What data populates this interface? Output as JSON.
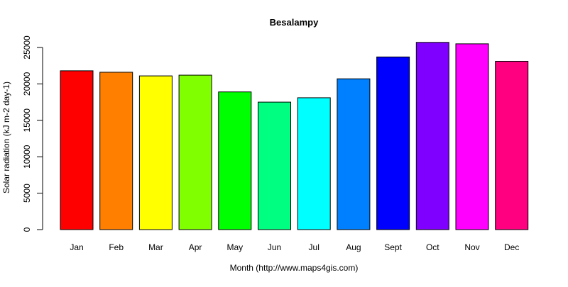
{
  "chart_data": {
    "type": "bar",
    "title": "Besalampy",
    "xlabel": "Month (http://www.maps4gis.com)",
    "ylabel": "Solar radiation (kJ m-2 day-1)",
    "ylim": [
      0,
      25000
    ],
    "yticks": [
      0,
      5000,
      10000,
      15000,
      20000,
      25000
    ],
    "grid": false,
    "legend": "none",
    "categories": [
      "Jan",
      "Feb",
      "Mar",
      "Apr",
      "May",
      "Jun",
      "Jul",
      "Aug",
      "Sept",
      "Oct",
      "Nov",
      "Dec"
    ],
    "values": [
      21800,
      21600,
      21100,
      21200,
      18900,
      17500,
      18100,
      20700,
      23700,
      25700,
      25500,
      23100
    ],
    "colors": [
      "#FF0000",
      "#FF8000",
      "#FFFF00",
      "#80FF00",
      "#00FF00",
      "#00FF80",
      "#00FFFF",
      "#0080FF",
      "#0000FF",
      "#8000FF",
      "#FF00FF",
      "#FF0080"
    ]
  }
}
